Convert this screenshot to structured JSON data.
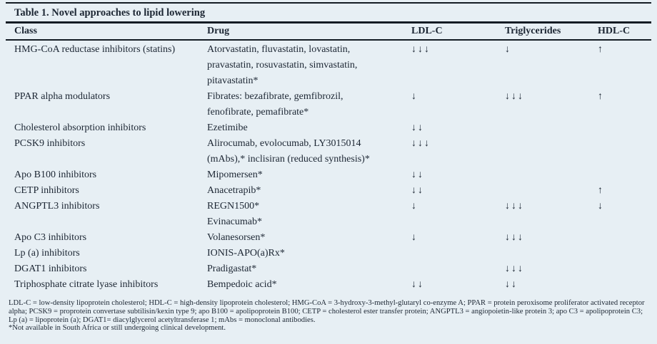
{
  "colors": {
    "background": "#e7eff4",
    "rule": "#141c24",
    "text": "#1c2633"
  },
  "table": {
    "title": "Table 1. Novel approaches to lipid lowering",
    "columns": [
      "Class",
      "Drug",
      "LDL-C",
      "Triglycerides",
      "HDL-C"
    ],
    "rows": [
      {
        "class": "HMG-CoA reductase inhibitors (statins)",
        "drug_lines": [
          "Atorvastatin, fluvastatin, lovastatin,",
          "pravastatin, rosuvastatin, simvastatin,",
          "pitavastatin*"
        ],
        "ldl": "↓↓↓",
        "tg": "↓",
        "hdl": "↑"
      },
      {
        "class": "PPAR alpha modulators",
        "drug_lines": [
          "Fibrates: bezafibrate, gemfibrozil,",
          "fenofibrate, pemafibrate*"
        ],
        "ldl": "↓",
        "tg": "↓↓↓",
        "hdl": "↑"
      },
      {
        "class": "Cholesterol absorption inhibitors",
        "drug_lines": [
          "Ezetimibe"
        ],
        "ldl": "↓↓",
        "tg": "",
        "hdl": ""
      },
      {
        "class": "PCSK9 inhibitors",
        "drug_lines": [
          "Alirocumab, evolocumab, LY3015014",
          "(mAbs),* inclisiran (reduced synthesis)*"
        ],
        "ldl": "↓↓↓",
        "tg": "",
        "hdl": ""
      },
      {
        "class": "Apo B100 inhibitors",
        "drug_lines": [
          "Mipomersen*"
        ],
        "ldl": "↓↓",
        "tg": "",
        "hdl": ""
      },
      {
        "class": "CETP inhibitors",
        "drug_lines": [
          "Anacetrapib*"
        ],
        "ldl": "↓↓",
        "tg": "",
        "hdl": "↑"
      },
      {
        "class": "ANGPTL3 inhibitors",
        "drug_lines": [
          "REGN1500*",
          "Evinacumab*"
        ],
        "ldl": "↓",
        "tg": "↓↓↓",
        "hdl": "↓"
      },
      {
        "class": "Apo C3 inhibitors",
        "drug_lines": [
          "Volanesorsen*"
        ],
        "ldl": "↓",
        "tg": "↓↓↓",
        "hdl": ""
      },
      {
        "class": "Lp (a) inhibitors",
        "drug_lines": [
          "IONIS-APO(a)Rx*"
        ],
        "ldl": "",
        "tg": "",
        "hdl": ""
      },
      {
        "class": "DGAT1 inhibitors",
        "drug_lines": [
          "Pradigastat*"
        ],
        "ldl": "",
        "tg": "↓↓↓",
        "hdl": ""
      },
      {
        "class": "Triphosphate citrate lyase inhibitors",
        "drug_lines": [
          "Bempedoic acid*"
        ],
        "ldl": "↓↓",
        "tg": "↓↓",
        "hdl": ""
      }
    ],
    "footnote": "LDL-C = low-density lipoprotein cholesterol; HDL-C = high-density lipoprotein cholesterol; HMG-CoA = 3-hydroxy-3-methyl-glutaryl co-enzyme A; PPAR = protein peroxisome proliferator activated receptor alpha; PCSK9 = proprotein convertase subtilisin/kexin type 9; apo B100 = apolipoprotein B100; CETP = cholesterol ester transfer protein; ANGPTL3 = angiopoietin-like protein 3; apo C3 = apolipoprotein C3; Lp (a) = lipoprotein (a); DGAT1= diacylglycerol acetyltransferase 1; mAbs = monoclonal antibodies.",
    "note": "*Not available in South Africa or still undergoing clinical development."
  }
}
